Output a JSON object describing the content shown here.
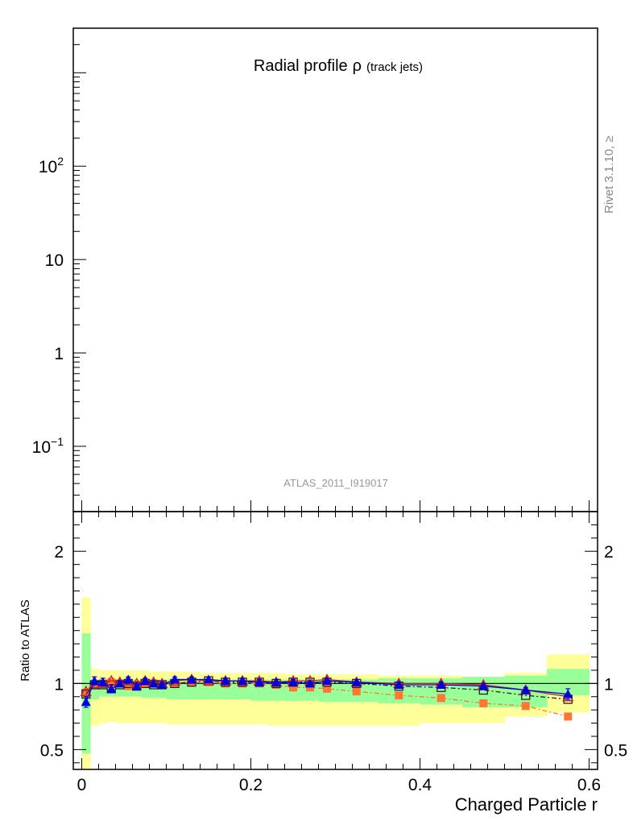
{
  "chart_data": [
    {
      "type": "line",
      "role": "main",
      "title_main": "Radial profile",
      "title_symbol": "ρ",
      "title_sub": "(track jets)",
      "analysis_label": "ATLAS_2011_I919017",
      "side_label": "Rivet 3.1.10, ≥",
      "yscale": "log",
      "xlim": [
        -0.01,
        0.61
      ],
      "ylim": [
        0.02,
        3000
      ],
      "major_ticks": [
        {
          "value": 0.1,
          "base": "10",
          "exp": "−1"
        },
        {
          "value": 1,
          "base": "1",
          "exp": ""
        },
        {
          "value": 10,
          "base": "10",
          "exp": ""
        },
        {
          "value": 100,
          "base": "10",
          "exp": "2"
        }
      ],
      "series": []
    },
    {
      "type": "line",
      "role": "ratio",
      "xlabel": "Charged Particle r",
      "ylabel": "Ratio to ATLAS",
      "xlim": [
        -0.01,
        0.61
      ],
      "ylim": [
        0.35,
        2.3
      ],
      "xticks": [
        {
          "value": 0,
          "label": "0"
        },
        {
          "value": 0.2,
          "label": "0.2"
        },
        {
          "value": 0.4,
          "label": "0.4"
        },
        {
          "value": 0.6,
          "label": "0.6"
        }
      ],
      "yticks": [
        {
          "value": 0.5,
          "label": "0.5"
        },
        {
          "value": 1,
          "label": "1"
        },
        {
          "value": 2,
          "label": "2"
        }
      ],
      "reference_line": 1,
      "bin_edges": [
        0,
        0.01,
        0.02,
        0.03,
        0.04,
        0.05,
        0.06,
        0.07,
        0.08,
        0.09,
        0.1,
        0.12,
        0.14,
        0.16,
        0.18,
        0.2,
        0.22,
        0.24,
        0.26,
        0.28,
        0.3,
        0.35,
        0.4,
        0.45,
        0.5,
        0.55,
        0.6
      ],
      "band_yellow": {
        "color": "#ffff99",
        "lower": [
          0.33,
          0.68,
          0.7,
          0.71,
          0.7,
          0.7,
          0.7,
          0.7,
          0.7,
          0.7,
          0.69,
          0.69,
          0.69,
          0.69,
          0.69,
          0.69,
          0.68,
          0.68,
          0.68,
          0.68,
          0.68,
          0.68,
          0.7,
          0.7,
          0.75,
          0.78
        ],
        "upper": [
          1.65,
          1.11,
          1.1,
          1.1,
          1.1,
          1.1,
          1.1,
          1.1,
          1.09,
          1.09,
          1.09,
          1.09,
          1.08,
          1.08,
          1.08,
          1.08,
          1.08,
          1.07,
          1.07,
          1.07,
          1.07,
          1.06,
          1.06,
          1.05,
          1.08,
          1.22
        ]
      },
      "band_green": {
        "color": "#99ff99",
        "lower": [
          0.47,
          0.88,
          0.9,
          0.9,
          0.9,
          0.9,
          0.9,
          0.89,
          0.89,
          0.89,
          0.88,
          0.88,
          0.88,
          0.88,
          0.88,
          0.87,
          0.87,
          0.87,
          0.87,
          0.86,
          0.86,
          0.85,
          0.84,
          0.82,
          0.82,
          0.91
        ],
        "upper": [
          1.38,
          1.03,
          1.03,
          1.03,
          1.03,
          1.03,
          1.03,
          1.03,
          1.03,
          1.03,
          1.03,
          1.03,
          1.03,
          1.03,
          1.03,
          1.03,
          1.03,
          1.03,
          1.03,
          1.03,
          1.03,
          1.04,
          1.04,
          1.05,
          1.06,
          1.11
        ]
      },
      "series": [
        {
          "marker": "square-filled",
          "color": "#ff7733",
          "dash": "dashdot",
          "x": [
            0.005,
            0.015,
            0.025,
            0.035,
            0.045,
            0.055,
            0.065,
            0.075,
            0.085,
            0.095,
            0.11,
            0.13,
            0.15,
            0.17,
            0.19,
            0.21,
            0.23,
            0.25,
            0.27,
            0.29,
            0.325,
            0.375,
            0.425,
            0.475,
            0.525,
            0.575
          ],
          "y": [
            0.93,
            0.99,
            1.0,
            1.01,
            1.0,
            0.98,
            0.99,
            1.0,
            1.0,
            0.99,
            1.0,
            1.01,
            1.01,
            1.0,
            1.0,
            1.0,
            0.99,
            0.97,
            0.97,
            0.96,
            0.94,
            0.91,
            0.89,
            0.85,
            0.83,
            0.75
          ]
        },
        {
          "marker": "square-open",
          "color": "#222222",
          "dash": "dashdot",
          "x": [
            0.005,
            0.015,
            0.025,
            0.035,
            0.045,
            0.055,
            0.065,
            0.075,
            0.085,
            0.095,
            0.11,
            0.13,
            0.15,
            0.17,
            0.19,
            0.21,
            0.23,
            0.25,
            0.27,
            0.29,
            0.325,
            0.375,
            0.425,
            0.475,
            0.525,
            0.575
          ],
          "y": [
            0.92,
            0.99,
            0.99,
            0.96,
            0.99,
            1.0,
            0.98,
            1.0,
            0.99,
            0.99,
            1.0,
            1.01,
            1.02,
            1.01,
            1.01,
            1.01,
            1.0,
            1.01,
            1.01,
            1.01,
            1.0,
            0.98,
            0.97,
            0.95,
            0.91,
            0.88
          ]
        },
        {
          "marker": "triangle-open",
          "color": "#cc2222",
          "dash": "solid",
          "x": [
            0.005,
            0.015,
            0.025,
            0.035,
            0.045,
            0.055,
            0.065,
            0.075,
            0.085,
            0.095,
            0.11,
            0.13,
            0.15,
            0.17,
            0.19,
            0.21,
            0.23,
            0.25,
            0.27,
            0.29,
            0.325,
            0.375,
            0.425,
            0.475,
            0.525,
            0.575
          ],
          "y": [
            0.94,
            1.0,
            1.0,
            1.02,
            1.01,
            1.02,
            1.0,
            1.02,
            1.01,
            1.0,
            1.02,
            1.03,
            1.02,
            1.02,
            1.02,
            1.02,
            1.01,
            1.02,
            1.02,
            1.03,
            1.01,
            1.0,
            1.0,
            0.99,
            0.95,
            0.9
          ]
        },
        {
          "marker": "triangle-filled",
          "color": "#0000dd",
          "dash": "solid",
          "x": [
            0.005,
            0.015,
            0.025,
            0.035,
            0.045,
            0.055,
            0.065,
            0.075,
            0.085,
            0.095,
            0.11,
            0.13,
            0.15,
            0.17,
            0.19,
            0.21,
            0.23,
            0.25,
            0.27,
            0.29,
            0.325,
            0.375,
            0.425,
            0.475,
            0.525,
            0.575
          ],
          "y": [
            0.86,
            1.02,
            1.01,
            0.96,
            1.0,
            1.03,
            0.98,
            1.02,
            1.0,
            0.99,
            1.03,
            1.03,
            1.03,
            1.02,
            1.02,
            1.01,
            1.01,
            1.01,
            1.0,
            1.02,
            1.01,
            0.99,
            0.99,
            0.98,
            0.95,
            0.92
          ],
          "err": [
            0.04,
            0.03,
            0.03,
            0.03,
            0.02,
            0.02,
            0.02,
            0.02,
            0.02,
            0.02,
            0.02,
            0.02,
            0.02,
            0.02,
            0.02,
            0.02,
            0.02,
            0.02,
            0.02,
            0.02,
            0.02,
            0.02,
            0.02,
            0.02,
            0.02,
            0.04
          ]
        }
      ]
    }
  ]
}
